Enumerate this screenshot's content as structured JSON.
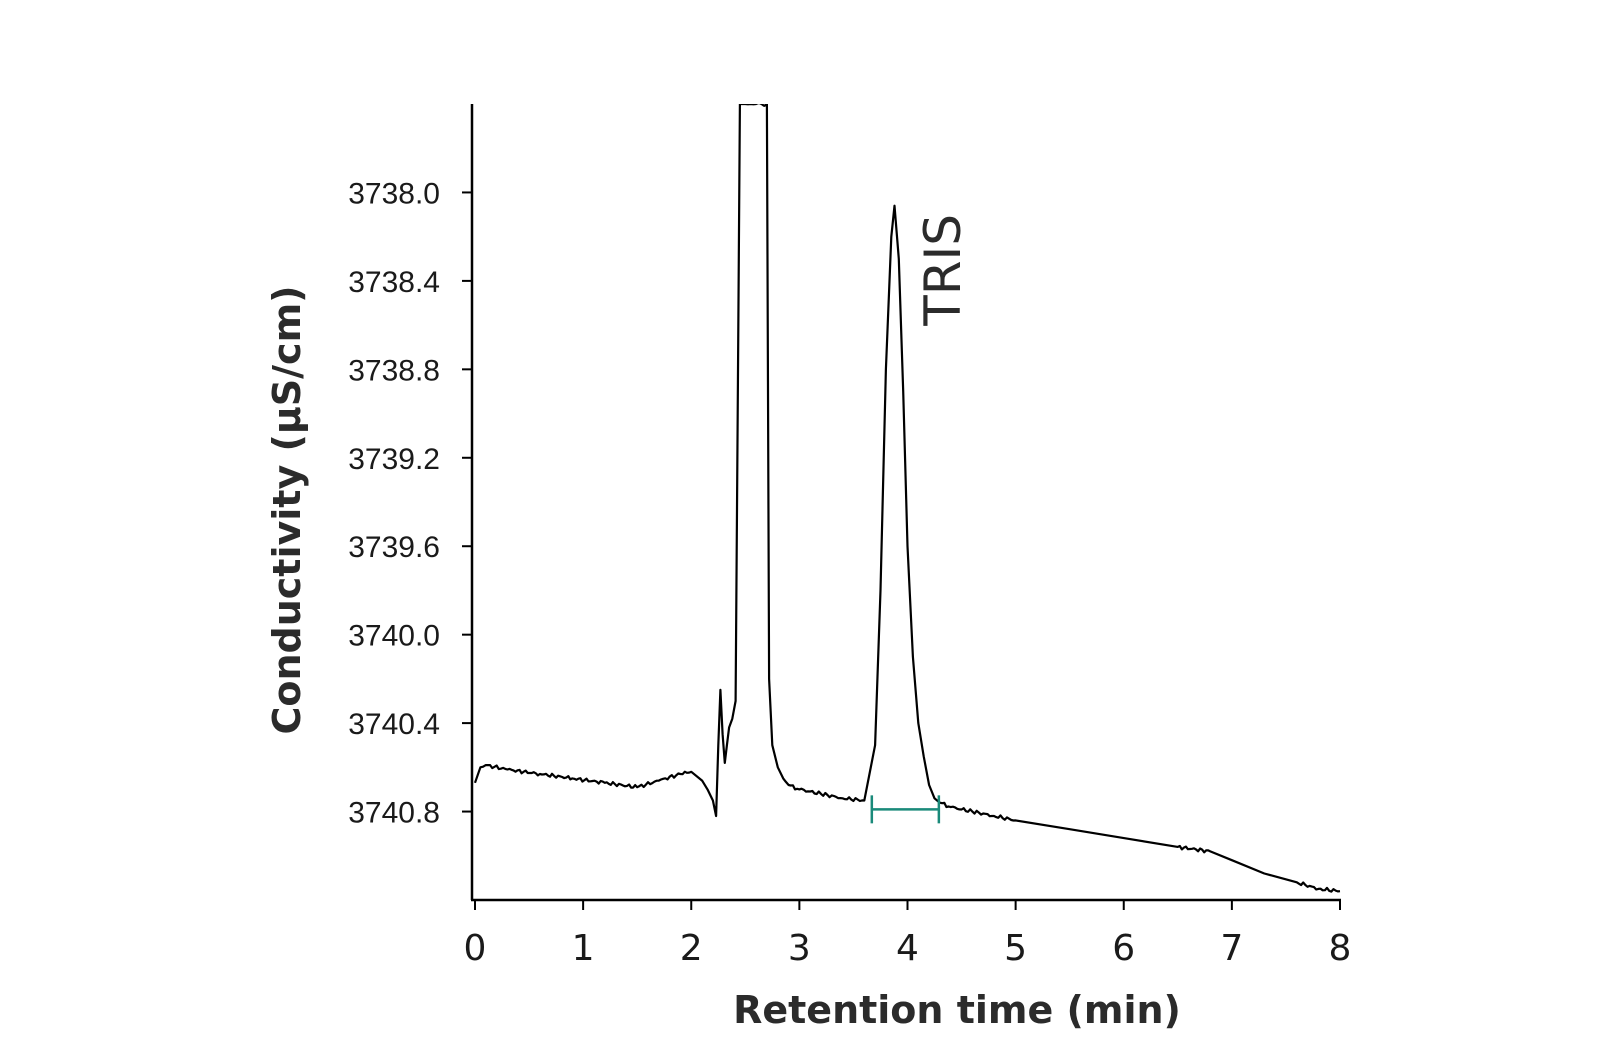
{
  "chart_data": {
    "type": "line",
    "title": "",
    "xlabel": "Retention time (min)",
    "ylabel": "Conductivity (μS/cm)",
    "xlim": [
      0,
      8
    ],
    "ylim": [
      3741.2,
      3737.6
    ],
    "y_inverted": true,
    "x_ticks": [
      "0",
      "1",
      "2",
      "3",
      "4",
      "5",
      "6",
      "7",
      "8"
    ],
    "y_ticks": [
      "3738.0",
      "3738.4",
      "3738.8",
      "3739.2",
      "3739.6",
      "3740.0",
      "3740.4",
      "3740.8"
    ],
    "grid": false,
    "series": [
      {
        "color": "#000000",
        "x": [
          0.0,
          0.05,
          0.1,
          0.3,
          0.6,
          0.9,
          1.2,
          1.5,
          1.7,
          1.9,
          2.0,
          2.1,
          2.15,
          2.2,
          2.23,
          2.25,
          2.27,
          2.29,
          2.31,
          2.33,
          2.35,
          2.38,
          2.41,
          2.43,
          2.45,
          2.47,
          2.5,
          2.55,
          2.6,
          2.65,
          2.7,
          2.72,
          2.75,
          2.8,
          2.85,
          2.9,
          3.0,
          3.2,
          3.4,
          3.6,
          3.7,
          3.75,
          3.8,
          3.85,
          3.88,
          3.92,
          3.96,
          4.0,
          4.05,
          4.1,
          4.15,
          4.2,
          4.25,
          4.3,
          4.4,
          4.6,
          4.8,
          5.0,
          5.5,
          6.0,
          6.5,
          6.8,
          7.0,
          7.3,
          7.6,
          7.8,
          8.0
        ],
        "y": [
          3740.67,
          3740.6,
          3740.59,
          3740.61,
          3740.63,
          3740.65,
          3740.67,
          3740.69,
          3740.66,
          3740.63,
          3740.62,
          3740.66,
          3740.7,
          3740.75,
          3740.82,
          3740.5,
          3740.25,
          3740.45,
          3740.58,
          3740.5,
          3740.42,
          3740.38,
          3740.3,
          3739.0,
          3737.6,
          3737.6,
          3737.6,
          3737.6,
          3737.6,
          3737.6,
          3737.6,
          3740.2,
          3740.5,
          3740.6,
          3740.65,
          3740.68,
          3740.7,
          3740.72,
          3740.74,
          3740.75,
          3740.5,
          3739.8,
          3738.8,
          3738.2,
          3738.06,
          3738.3,
          3738.9,
          3739.6,
          3740.1,
          3740.4,
          3740.55,
          3740.68,
          3740.74,
          3740.76,
          3740.78,
          3740.8,
          3740.82,
          3740.84,
          3740.88,
          3740.92,
          3740.96,
          3740.98,
          3741.02,
          3741.08,
          3741.12,
          3741.15,
          3741.16
        ]
      }
    ],
    "annotations": [
      {
        "text": "TRIS",
        "x": 4.45,
        "y": 3738.35,
        "rotation": -90
      }
    ],
    "integration_bar": {
      "x_start": 3.67,
      "x_end": 4.29,
      "y": 3740.79,
      "color": "#1a8a7a"
    }
  }
}
